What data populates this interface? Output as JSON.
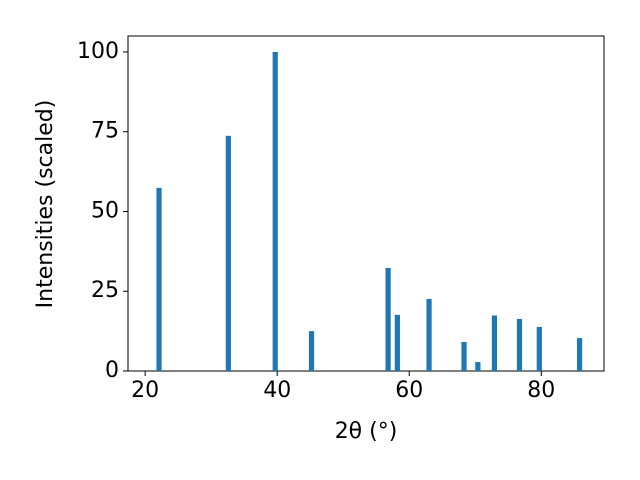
{
  "chart_data": {
    "type": "bar",
    "x_label": "2θ (°)",
    "y_label": "Intensities (scaled)",
    "x": [
      22.1,
      32.6,
      39.7,
      45.2,
      56.8,
      58.2,
      63.0,
      68.3,
      70.4,
      72.9,
      76.7,
      79.7,
      85.8
    ],
    "values": [
      57.4,
      73.7,
      100,
      12.5,
      32.3,
      17.6,
      22.6,
      9.1,
      2.8,
      17.4,
      16.3,
      13.8,
      10.3
    ],
    "color": "#1f77b4",
    "xlim": [
      17.4,
      89.5
    ],
    "xticks": [
      20,
      40,
      60,
      80
    ],
    "ylim": [
      0,
      105
    ],
    "yticks": [
      0,
      25,
      50,
      75,
      100
    ],
    "grid": false
  }
}
